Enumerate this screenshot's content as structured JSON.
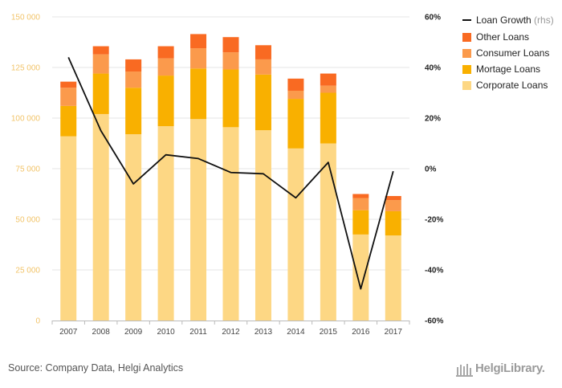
{
  "chart_data": {
    "type": "bar",
    "categories": [
      "2007",
      "2008",
      "2009",
      "2010",
      "2011",
      "2012",
      "2013",
      "2014",
      "2015",
      "2016",
      "2017"
    ],
    "series": [
      {
        "name": "Corporate Loans",
        "values": [
          91000,
          102000,
          92000,
          96000,
          99500,
          95500,
          94000,
          85000,
          87500,
          42500,
          42000
        ],
        "color": "#fdd784"
      },
      {
        "name": "Mortage Loans",
        "values": [
          15000,
          20000,
          23000,
          25000,
          25000,
          28500,
          27500,
          24500,
          25000,
          12000,
          12000
        ],
        "color": "#f9b000"
      },
      {
        "name": "Consumer Loans",
        "values": [
          9000,
          9500,
          8000,
          8500,
          10000,
          8500,
          7500,
          4000,
          3500,
          6000,
          5500
        ],
        "color": "#fb9a4c"
      },
      {
        "name": "Other Loans",
        "values": [
          3000,
          4000,
          6000,
          6000,
          7000,
          7500,
          7000,
          6000,
          6000,
          2000,
          2000
        ],
        "color": "#f96a22"
      }
    ],
    "line_series": {
      "name": "Loan Growth",
      "name_suffix": "(rhs)",
      "values": [
        44,
        15,
        -6,
        5.5,
        4,
        -1.5,
        -2,
        -11.5,
        2.5,
        -47.5,
        -1
      ],
      "color": "#111111"
    },
    "y_left": {
      "min": 0,
      "max": 150000,
      "ticks": [
        "0",
        "25 000",
        "50 000",
        "75 000",
        "100 000",
        "125 000",
        "150 000"
      ]
    },
    "y_right": {
      "min": -60,
      "max": 60,
      "ticks": [
        "-60%",
        "-40%",
        "-20%",
        "0%",
        "20%",
        "40%",
        "60%"
      ]
    },
    "grid": true,
    "legend_position": "top-right"
  },
  "footer": {
    "source": "Source: Company Data, Helgi Analytics",
    "brand": "HelgiLibrary."
  }
}
